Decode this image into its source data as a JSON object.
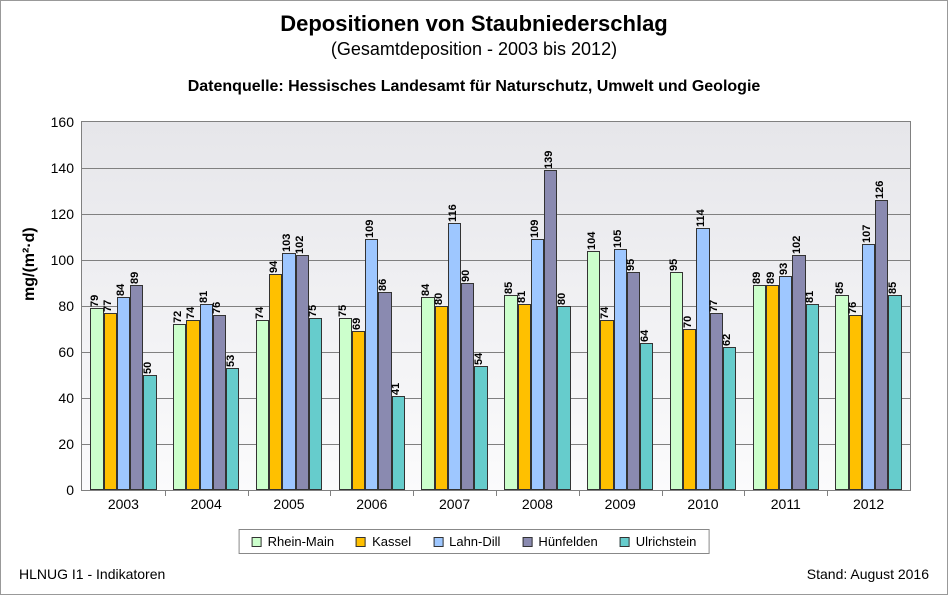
{
  "title": "Depositionen von Staubniederschlag",
  "title_fontsize": 22,
  "subtitle": "(Gesamtdeposition - 2003 bis 2012)",
  "subtitle_fontsize": 18,
  "source": "Datenquelle: Hessisches Landesamt für Naturschutz, Umwelt und Geologie",
  "source_fontsize": 16,
  "ylabel": "mg/(m²·d)",
  "footer_left": "HLNUG I1 - Indikatoren",
  "footer_right": "Stand: August 2016",
  "chart": {
    "type": "bar",
    "ylim": [
      0,
      160
    ],
    "ytick_step": 20,
    "grid_color": "#808080",
    "plot_bg_top": "#e6e6ea",
    "plot_bg_bottom": "#fbfbfc",
    "categories": [
      "2003",
      "2004",
      "2005",
      "2006",
      "2007",
      "2008",
      "2009",
      "2010",
      "2011",
      "2012"
    ],
    "series": [
      {
        "name": "Rhein-Main",
        "color": "#ccffcc",
        "values": [
          79,
          72,
          74,
          75,
          84,
          85,
          104,
          95,
          89,
          85
        ]
      },
      {
        "name": "Kassel",
        "color": "#ffc000",
        "values": [
          77,
          74,
          94,
          69,
          80,
          81,
          74,
          70,
          89,
          76
        ]
      },
      {
        "name": "Lahn-Dill",
        "color": "#9ec7ff",
        "values": [
          84,
          81,
          103,
          109,
          116,
          109,
          105,
          114,
          93,
          107
        ]
      },
      {
        "name": "Hünfelden",
        "color": "#8a8ab0",
        "values": [
          89,
          76,
          102,
          86,
          90,
          139,
          95,
          77,
          102,
          126
        ]
      },
      {
        "name": "Ulrichstein",
        "color": "#66cccc",
        "values": [
          50,
          53,
          75,
          41,
          54,
          80,
          64,
          62,
          81,
          85
        ]
      }
    ],
    "bar_border": "#333333",
    "label_fontsize": 11
  }
}
